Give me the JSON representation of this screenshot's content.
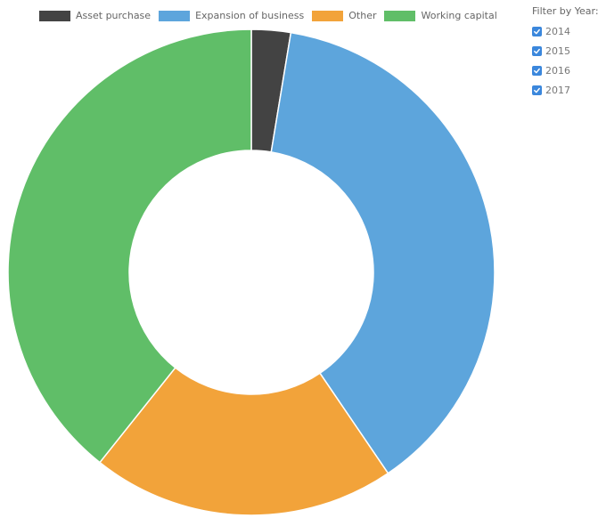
{
  "chart_data": {
    "type": "pie",
    "style": "donut",
    "categories": [
      "Asset purchase",
      "Expansion of business",
      "Other",
      "Working capital"
    ],
    "values": [
      2.6,
      37.9,
      20.2,
      39.3
    ],
    "colors": [
      "#434343",
      "#5da5dc",
      "#f2a33a",
      "#60be68"
    ],
    "legend_position": "top",
    "title": ""
  },
  "filter": {
    "title": "Filter by Year:",
    "options": [
      {
        "label": "2014",
        "checked": true
      },
      {
        "label": "2015",
        "checked": true
      },
      {
        "label": "2016",
        "checked": true
      },
      {
        "label": "2017",
        "checked": true
      }
    ]
  }
}
